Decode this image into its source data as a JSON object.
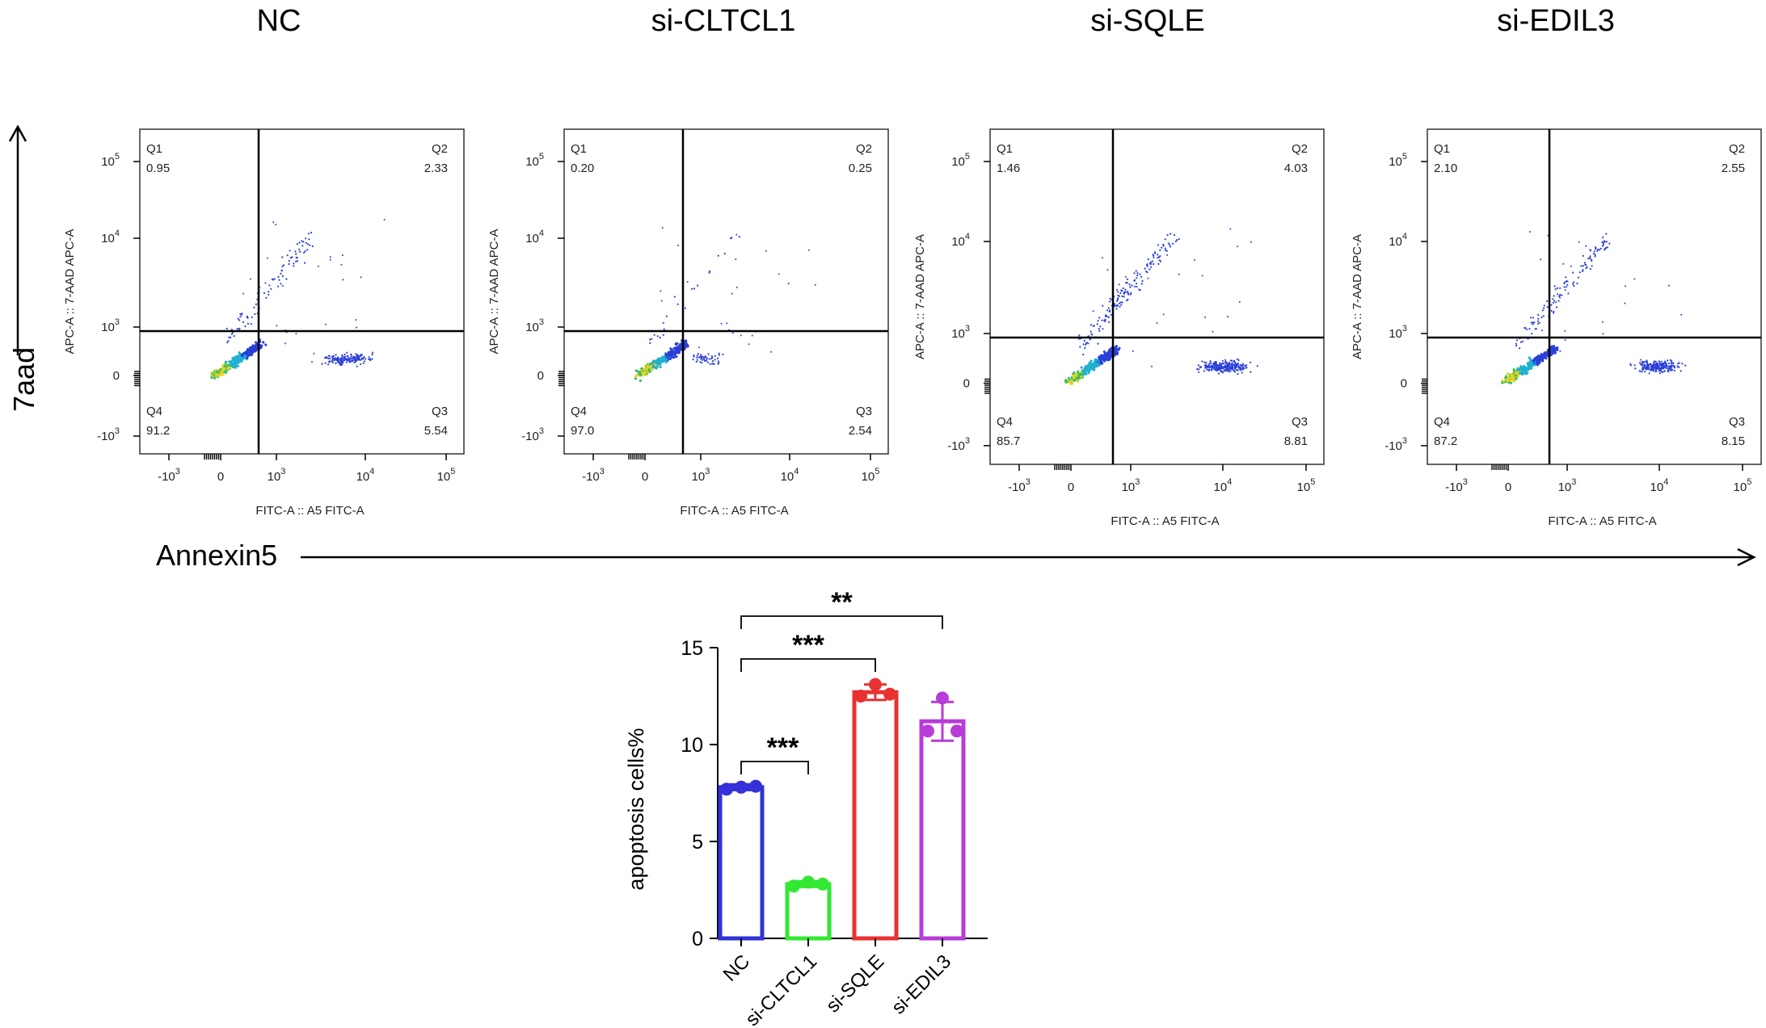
{
  "panel_titles": [
    "NC",
    "si-CLTCL1",
    "si-SQLE",
    "si-EDIL3"
  ],
  "y_axis_arrow_label": "7aad",
  "x_axis_arrow_label": "Annexin5",
  "flow_axes": {
    "xlabel": "FITC-A :: A5 FITC-A",
    "ylabel": "APC-A :: 7-AAD APC-A",
    "x_ticks": [
      "-10",
      "0",
      "10",
      "10",
      "10"
    ],
    "x_tick_exps": [
      "3",
      "",
      "3",
      "4",
      "5"
    ],
    "y_ticks": [
      "10",
      "10",
      "10",
      "0",
      "-10"
    ],
    "y_tick_exps": [
      "5",
      "4",
      "3",
      "",
      "3"
    ]
  },
  "quadrant_names": [
    "Q1",
    "Q2",
    "Q3",
    "Q4"
  ],
  "flow_panels": [
    {
      "name": "NC",
      "Q1": "0.95",
      "Q2": "2.33",
      "Q3": "5.54",
      "Q4": "91.2"
    },
    {
      "name": "si-CLTCL1",
      "Q1": "0.20",
      "Q2": "0.25",
      "Q3": "2.54",
      "Q4": "97.0"
    },
    {
      "name": "si-SQLE",
      "Q1": "1.46",
      "Q2": "4.03",
      "Q3": "8.81",
      "Q4": "85.7"
    },
    {
      "name": "si-EDIL3",
      "Q1": "2.10",
      "Q2": "2.55",
      "Q3": "8.15",
      "Q4": "87.2"
    }
  ],
  "chart_data": {
    "type": "bar",
    "title": "",
    "xlabel": "",
    "ylabel": "apoptosis cells%",
    "ylim": [
      0,
      15
    ],
    "yticks": [
      "0",
      "5",
      "10",
      "15"
    ],
    "categories": [
      "NC",
      "si-CLTCL1",
      "si-SQLE",
      "si-EDIL3"
    ],
    "values": [
      7.8,
      2.8,
      12.7,
      11.2
    ],
    "errors": [
      0.15,
      0.15,
      0.4,
      1.0
    ],
    "points": [
      [
        7.7,
        7.8,
        7.85
      ],
      [
        2.7,
        2.9,
        2.8
      ],
      [
        12.5,
        13.1,
        12.6
      ],
      [
        10.7,
        12.4,
        10.7
      ]
    ],
    "colors": [
      "#3232d8",
      "#33e833",
      "#e83232",
      "#b83cd8"
    ],
    "significance": [
      {
        "from": "NC",
        "to": "si-CLTCL1",
        "label": "***"
      },
      {
        "from": "NC",
        "to": "si-SQLE",
        "label": "***"
      },
      {
        "from": "NC",
        "to": "si-EDIL3",
        "label": "**"
      }
    ]
  }
}
